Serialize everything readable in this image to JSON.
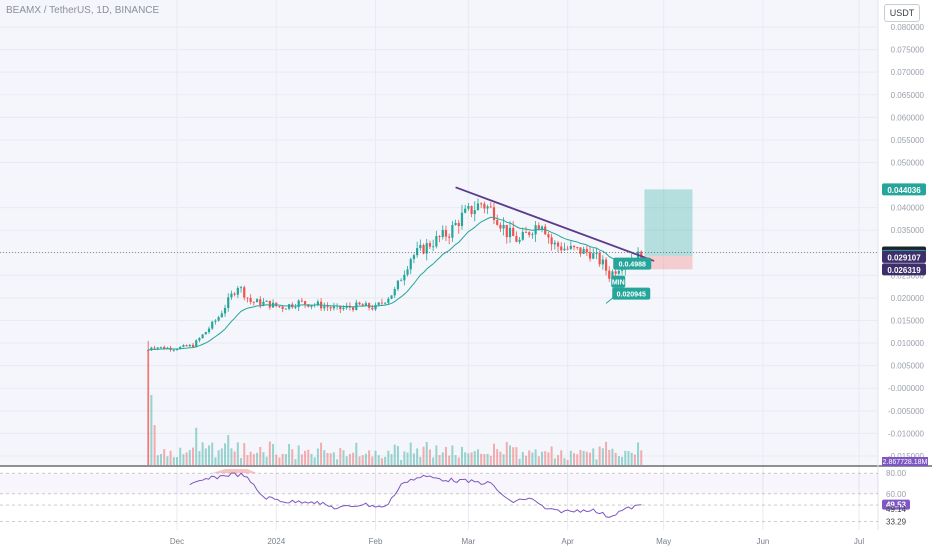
{
  "header": {
    "symbol": "BEAMX / TetherUS, 1D, BINANCE",
    "currency_button": "USDT"
  },
  "colors": {
    "up": "#26a69a",
    "down": "#ef5350",
    "ma": "#26a69a",
    "trendline": "#5b3b8c",
    "rsi": "#7e57c2",
    "background": "#ffffff",
    "grid": "#f0f3fa"
  },
  "chart_data": [
    {
      "type": "candlestick",
      "title": "BEAMX / TetherUS, 1D, BINANCE",
      "x_tick_labels": [
        "Dec",
        "2024",
        "Feb",
        "Mar",
        "Apr",
        "May",
        "Jun",
        "Jul"
      ],
      "y_tick_labels": [
        "0.080000",
        "0.075000",
        "0.070000",
        "0.065000",
        "0.060000",
        "0.055000",
        "0.050000",
        "0.040000",
        "0.035000",
        "0.030000",
        "0.025000",
        "0.020000",
        "0.015000",
        "0.010000",
        "0.005000",
        "-0.000000",
        "-0.005000",
        "-0.010000",
        "-0.015000"
      ],
      "ylim": [
        -0.017,
        0.082
      ],
      "grid": true,
      "price_labels": [
        {
          "text": "0.044036",
          "value": 0.044036,
          "color": "#26a69a"
        },
        {
          "text": "0.030055",
          "value": 0.030055,
          "color": "#1e222d"
        },
        {
          "text": "0.029313",
          "value": 0.029313,
          "color": "#26a69a"
        },
        {
          "text": "0.029107",
          "value": 0.029107,
          "color": "#3d2f6b"
        },
        {
          "text": "0.026319",
          "value": 0.026319,
          "color": "#3d2f6b"
        }
      ],
      "current_price": 0.030055,
      "position_tool": {
        "entry": 0.029313,
        "target": 0.044036,
        "stop": 0.026319
      },
      "annotations": [
        {
          "text": "0.020945",
          "value": 0.020945
        },
        {
          "text": "0.0.4988",
          "value": 0.0276
        },
        {
          "text": "MIN",
          "value": 0.0236
        }
      ],
      "volume_label": "2.867728.18M",
      "series": [
        {
          "name": "price",
          "type": "candles",
          "points": [
            {
              "date": "2023-11-22",
              "close": 0.0085
            },
            {
              "date": "2023-11-23",
              "close": 0.0092
            },
            {
              "date": "2023-11-30",
              "close": 0.0088
            },
            {
              "date": "2023-12-06",
              "close": 0.0095
            },
            {
              "date": "2023-12-10",
              "close": 0.0125
            },
            {
              "date": "2023-12-14",
              "close": 0.0158
            },
            {
              "date": "2023-12-18",
              "close": 0.0205
            },
            {
              "date": "2023-12-20",
              "close": 0.0228
            },
            {
              "date": "2023-12-24",
              "close": 0.0192
            },
            {
              "date": "2023-12-29",
              "close": 0.0188
            },
            {
              "date": "2024-01-01",
              "close": 0.0182
            },
            {
              "date": "2024-01-03",
              "close": 0.018
            },
            {
              "date": "2024-01-08",
              "close": 0.019
            },
            {
              "date": "2024-01-14",
              "close": 0.0185
            },
            {
              "date": "2024-01-20",
              "close": 0.0175
            },
            {
              "date": "2024-01-27",
              "close": 0.0183
            },
            {
              "date": "2024-02-01",
              "close": 0.0178
            },
            {
              "date": "2024-02-07",
              "close": 0.0215
            },
            {
              "date": "2024-02-12",
              "close": 0.029
            },
            {
              "date": "2024-02-18",
              "close": 0.032
            },
            {
              "date": "2024-02-24",
              "close": 0.0345
            },
            {
              "date": "2024-02-28",
              "close": 0.038
            },
            {
              "date": "2024-03-02",
              "close": 0.0395
            },
            {
              "date": "2024-03-05",
              "close": 0.041
            },
            {
              "date": "2024-03-09",
              "close": 0.039
            },
            {
              "date": "2024-03-13",
              "close": 0.0345
            },
            {
              "date": "2024-03-17",
              "close": 0.0325
            },
            {
              "date": "2024-03-21",
              "close": 0.0355
            },
            {
              "date": "2024-03-24",
              "close": 0.037
            },
            {
              "date": "2024-03-27",
              "close": 0.032
            },
            {
              "date": "2024-03-31",
              "close": 0.031
            },
            {
              "date": "2024-04-04",
              "close": 0.0305
            },
            {
              "date": "2024-04-08",
              "close": 0.03
            },
            {
              "date": "2024-04-12",
              "close": 0.0275
            },
            {
              "date": "2024-04-14",
              "close": 0.025
            },
            {
              "date": "2024-04-17",
              "close": 0.027
            },
            {
              "date": "2024-04-20",
              "close": 0.0285
            },
            {
              "date": "2024-04-23",
              "close": 0.0293
            },
            {
              "date": "2024-04-24",
              "close": 0.0301
            }
          ]
        },
        {
          "name": "moving average",
          "type": "line"
        }
      ]
    },
    {
      "type": "line",
      "title": "RSI",
      "ylim": [
        25,
        85
      ],
      "y_tick_labels": [
        "80.00",
        "60.00",
        "49.53",
        "49.14",
        "33.29"
      ],
      "bands": [
        80,
        60,
        49.14,
        33.29
      ],
      "current": 49.53,
      "series": [
        {
          "name": "rsi",
          "points": [
            {
              "date": "2023-12-05",
              "value": 68
            },
            {
              "date": "2023-12-10",
              "value": 74
            },
            {
              "date": "2023-12-18",
              "value": 79
            },
            {
              "date": "2023-12-22",
              "value": 78
            },
            {
              "date": "2023-12-28",
              "value": 57
            },
            {
              "date": "2024-01-05",
              "value": 52
            },
            {
              "date": "2024-01-12",
              "value": 53
            },
            {
              "date": "2024-01-20",
              "value": 46
            },
            {
              "date": "2024-01-28",
              "value": 50
            },
            {
              "date": "2024-02-04",
              "value": 47
            },
            {
              "date": "2024-02-10",
              "value": 72
            },
            {
              "date": "2024-02-16",
              "value": 77
            },
            {
              "date": "2024-02-22",
              "value": 74
            },
            {
              "date": "2024-03-01",
              "value": 72
            },
            {
              "date": "2024-03-08",
              "value": 70
            },
            {
              "date": "2024-03-14",
              "value": 52
            },
            {
              "date": "2024-03-20",
              "value": 56
            },
            {
              "date": "2024-03-26",
              "value": 44
            },
            {
              "date": "2024-04-02",
              "value": 43
            },
            {
              "date": "2024-04-08",
              "value": 45
            },
            {
              "date": "2024-04-14",
              "value": 38
            },
            {
              "date": "2024-04-18",
              "value": 44
            },
            {
              "date": "2024-04-24",
              "value": 49.53
            }
          ]
        }
      ]
    }
  ]
}
